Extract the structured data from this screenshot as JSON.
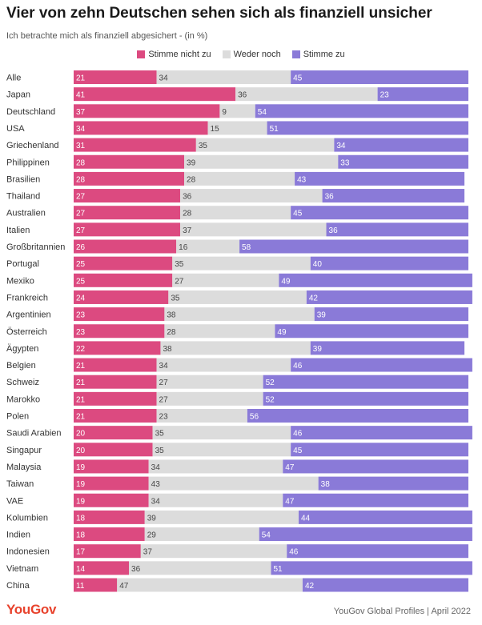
{
  "header": {
    "title": "Vier von zehn Deutschen sehen sich als finanziell unsicher",
    "subtitle": "Ich betrachte mich als finanziell abgesichert - (in %)"
  },
  "footer": {
    "logo": "YouGov",
    "source": "YouGov Global Profiles | April 2022"
  },
  "colors": {
    "disagree": "#dc4a80",
    "neutral": "#dcdcdc",
    "agree": "#8a7ad8"
  },
  "chart_data": {
    "type": "bar",
    "stacked": true,
    "orientation": "horizontal",
    "title": "Vier von zehn Deutschen sehen sich als finanziell unsicher",
    "subtitle": "Ich betrachte mich als finanziell abgesichert - (in %)",
    "legend_position": "top-center",
    "categories": [
      "Alle",
      "Japan",
      "Deutschland",
      "USA",
      "Griechenland",
      "Philippinen",
      "Brasilien",
      "Thailand",
      "Australien",
      "Italien",
      "Großbritannien",
      "Portugal",
      "Mexiko",
      "Frankreich",
      "Argentinien",
      "Österreich",
      "Ägypten",
      "Belgien",
      "Schweiz",
      "Marokko",
      "Polen",
      "Saudi Arabien",
      "Singapur",
      "Malaysia",
      "Taiwan",
      "VAE",
      "Kolumbien",
      "Indien",
      "Indonesien",
      "Vietnam",
      "China"
    ],
    "series": [
      {
        "name": "Stimme nicht zu",
        "values": [
          21,
          41,
          37,
          34,
          31,
          28,
          28,
          27,
          27,
          27,
          26,
          25,
          25,
          24,
          23,
          23,
          22,
          21,
          21,
          21,
          21,
          20,
          20,
          19,
          19,
          19,
          18,
          18,
          17,
          14,
          11
        ]
      },
      {
        "name": "Weder noch",
        "values": [
          34,
          36,
          9,
          15,
          35,
          39,
          28,
          36,
          28,
          37,
          16,
          35,
          27,
          35,
          38,
          28,
          38,
          34,
          27,
          27,
          23,
          35,
          35,
          34,
          43,
          34,
          39,
          29,
          37,
          36,
          47
        ]
      },
      {
        "name": "Stimme zu",
        "values": [
          45,
          23,
          54,
          51,
          34,
          33,
          43,
          36,
          45,
          36,
          58,
          40,
          49,
          42,
          39,
          49,
          39,
          46,
          52,
          52,
          56,
          46,
          45,
          47,
          38,
          47,
          44,
          54,
          46,
          51,
          42
        ]
      }
    ]
  }
}
